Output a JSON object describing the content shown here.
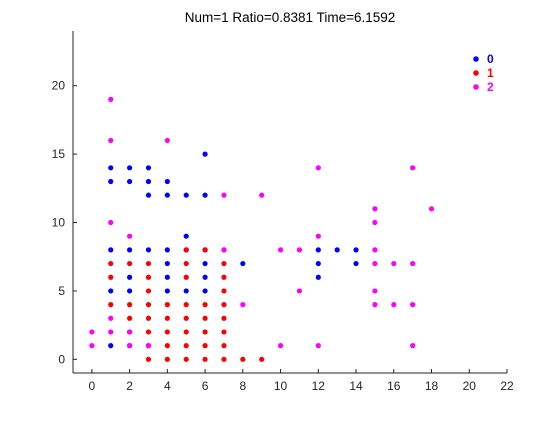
{
  "chart_data": {
    "type": "scatter",
    "title": "Num=1 Ratio=0.8381 Time=6.1592",
    "xlabel": "",
    "ylabel": "",
    "xlim": [
      -1,
      22
    ],
    "ylim": [
      -1,
      24
    ],
    "xticks": [
      0,
      2,
      4,
      6,
      8,
      10,
      12,
      14,
      16,
      18,
      20,
      22
    ],
    "yticks": [
      0,
      5,
      10,
      15,
      20
    ],
    "grid": false,
    "legend_position": "top-right",
    "series": [
      {
        "name": "0",
        "color": "#0000ff",
        "points": [
          [
            1,
            14
          ],
          [
            2,
            14
          ],
          [
            3,
            14
          ],
          [
            1,
            13
          ],
          [
            2,
            13
          ],
          [
            3,
            13
          ],
          [
            4,
            13
          ],
          [
            3,
            12
          ],
          [
            4,
            12
          ],
          [
            5,
            12
          ],
          [
            6,
            12
          ],
          [
            6,
            15
          ],
          [
            1,
            8
          ],
          [
            2,
            8
          ],
          [
            3,
            8
          ],
          [
            4,
            8
          ],
          [
            5,
            8
          ],
          [
            6,
            8
          ],
          [
            5,
            9
          ],
          [
            1,
            5
          ],
          [
            2,
            5
          ],
          [
            4,
            5
          ],
          [
            5,
            5
          ],
          [
            6,
            5
          ],
          [
            2,
            6
          ],
          [
            4,
            6
          ],
          [
            6,
            6
          ],
          [
            4,
            7
          ],
          [
            6,
            7
          ],
          [
            8,
            7
          ],
          [
            1,
            1
          ],
          [
            2,
            1
          ],
          [
            12,
            8
          ],
          [
            13,
            8
          ],
          [
            14,
            8
          ],
          [
            12,
            7
          ],
          [
            14,
            7
          ],
          [
            12,
            6
          ]
        ]
      },
      {
        "name": "1",
        "color": "#ff0000",
        "points": [
          [
            1,
            7
          ],
          [
            2,
            7
          ],
          [
            3,
            7
          ],
          [
            5,
            7
          ],
          [
            1,
            6
          ],
          [
            3,
            6
          ],
          [
            5,
            6
          ],
          [
            3,
            5
          ],
          [
            1,
            4
          ],
          [
            2,
            4
          ],
          [
            3,
            4
          ],
          [
            4,
            4
          ],
          [
            5,
            4
          ],
          [
            6,
            4
          ],
          [
            2,
            3
          ],
          [
            3,
            3
          ],
          [
            4,
            3
          ],
          [
            5,
            3
          ],
          [
            6,
            3
          ],
          [
            2,
            2
          ],
          [
            3,
            2
          ],
          [
            4,
            2
          ],
          [
            5,
            2
          ],
          [
            6,
            2
          ],
          [
            3,
            1
          ],
          [
            4,
            1
          ],
          [
            5,
            1
          ],
          [
            6,
            1
          ],
          [
            4,
            0
          ],
          [
            5,
            0
          ],
          [
            6,
            0
          ],
          [
            5,
            8
          ],
          [
            6,
            8
          ],
          [
            7,
            8
          ],
          [
            7,
            7
          ],
          [
            7,
            6
          ],
          [
            7,
            5
          ],
          [
            7,
            4
          ],
          [
            7,
            3
          ],
          [
            7,
            2
          ],
          [
            3,
            0
          ],
          [
            7,
            1
          ],
          [
            7,
            0
          ],
          [
            8,
            0
          ],
          [
            9,
            0
          ]
        ]
      },
      {
        "name": "2",
        "color": "#ff00ff",
        "points": [
          [
            1,
            19
          ],
          [
            1,
            16
          ],
          [
            4,
            16
          ],
          [
            7,
            12
          ],
          [
            9,
            12
          ],
          [
            1,
            10
          ],
          [
            2,
            9
          ],
          [
            1,
            3
          ],
          [
            2,
            2
          ],
          [
            0,
            2
          ],
          [
            0,
            1
          ],
          [
            1,
            2
          ],
          [
            7,
            8
          ],
          [
            8,
            4
          ],
          [
            10,
            8
          ],
          [
            11,
            8
          ],
          [
            11,
            5
          ],
          [
            10,
            1
          ],
          [
            12,
            14
          ],
          [
            12,
            9
          ],
          [
            12,
            1
          ],
          [
            15,
            11
          ],
          [
            15,
            10
          ],
          [
            15,
            8
          ],
          [
            15,
            7
          ],
          [
            15,
            5
          ],
          [
            15,
            4
          ],
          [
            16,
            7
          ],
          [
            16,
            4
          ],
          [
            17,
            7
          ],
          [
            17,
            4
          ],
          [
            17,
            14
          ],
          [
            17,
            1
          ],
          [
            18,
            11
          ],
          [
            2,
            1
          ],
          [
            3,
            1
          ]
        ]
      }
    ]
  }
}
